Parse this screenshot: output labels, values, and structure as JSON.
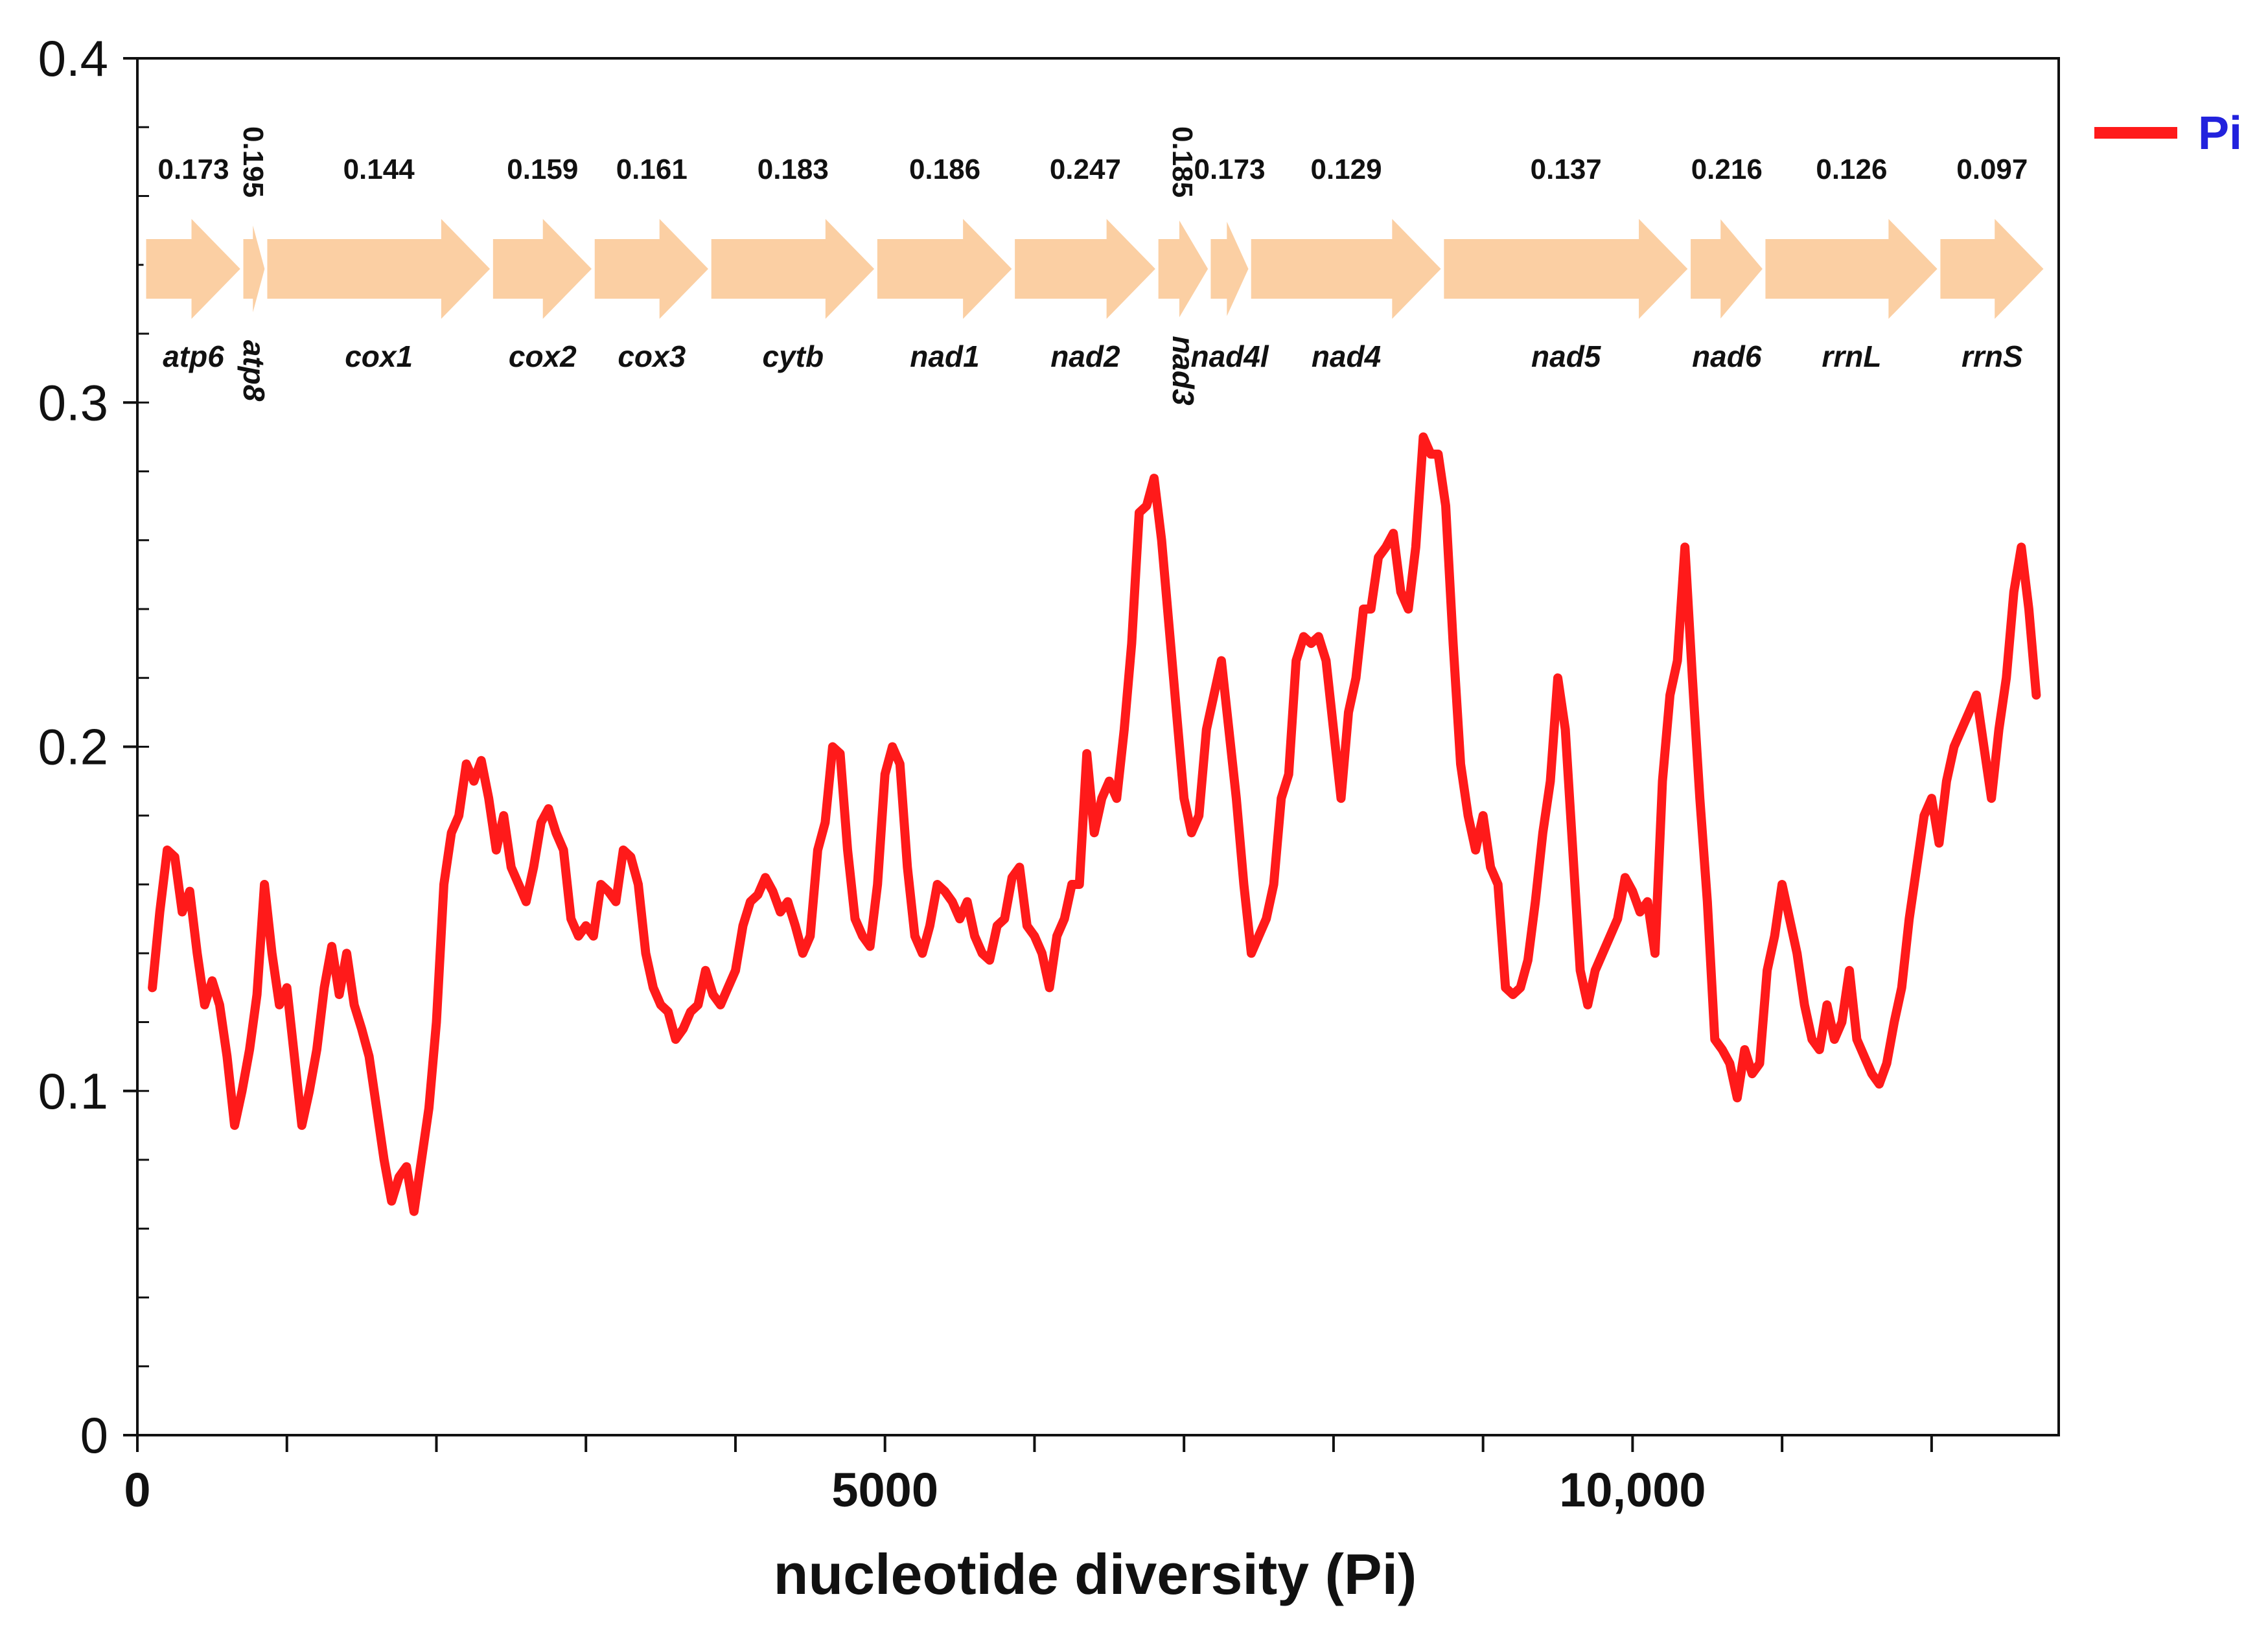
{
  "colors": {
    "series": "#ff1a1a",
    "gene_arrow": "#fbcfa3",
    "legend_text": "#2222dd",
    "axis": "#111111"
  },
  "chart_data": {
    "type": "line",
    "title": "",
    "xlabel": "nucleotide diversity (Pi)",
    "ylabel": "",
    "xlim": [
      0,
      12850
    ],
    "ylim": [
      0,
      0.4
    ],
    "y_ticks": [
      {
        "value": 0,
        "label": "0"
      },
      {
        "value": 0.1,
        "label": "0.1"
      },
      {
        "value": 0.2,
        "label": "0.2"
      },
      {
        "value": 0.3,
        "label": "0.3"
      },
      {
        "value": 0.4,
        "label": "0.4"
      }
    ],
    "x_ticks": [
      {
        "value": 0,
        "label": "0"
      },
      {
        "value": 5000,
        "label": "5000"
      },
      {
        "value": 10000,
        "label": "10,000"
      }
    ],
    "x_minor_step": 1000,
    "y_minor_step": 0.02,
    "legend": {
      "position": "top-right",
      "entries": [
        "Pi"
      ]
    },
    "series": [
      {
        "name": "Pi",
        "x": [
          100,
          150,
          200,
          250,
          300,
          350,
          400,
          450,
          500,
          550,
          600,
          650,
          700,
          750,
          800,
          850,
          900,
          950,
          1000,
          1050,
          1100,
          1150,
          1200,
          1250,
          1300,
          1350,
          1400,
          1450,
          1500,
          1550,
          1600,
          1650,
          1700,
          1750,
          1800,
          1850,
          1900,
          1950,
          2000,
          2050,
          2100,
          2150,
          2200,
          2250,
          2300,
          2350,
          2400,
          2450,
          2500,
          2550,
          2600,
          2650,
          2700,
          2750,
          2800,
          2850,
          2900,
          2950,
          3000,
          3050,
          3100,
          3150,
          3200,
          3250,
          3300,
          3350,
          3400,
          3450,
          3500,
          3550,
          3600,
          3650,
          3700,
          3750,
          3800,
          3850,
          3900,
          3950,
          4000,
          4050,
          4100,
          4150,
          4200,
          4250,
          4300,
          4350,
          4400,
          4450,
          4500,
          4550,
          4600,
          4650,
          4700,
          4750,
          4800,
          4850,
          4900,
          4950,
          5000,
          5050,
          5100,
          5150,
          5200,
          5250,
          5300,
          5350,
          5400,
          5450,
          5500,
          5550,
          5600,
          5650,
          5700,
          5750,
          5800,
          5850,
          5900,
          5950,
          6000,
          6050,
          6100,
          6150,
          6200,
          6250,
          6300,
          6350,
          6400,
          6450,
          6500,
          6550,
          6600,
          6650,
          6700,
          6750,
          6800,
          6850,
          6900,
          6950,
          7000,
          7050,
          7100,
          7150,
          7200,
          7250,
          7300,
          7350,
          7400,
          7450,
          7500,
          7550,
          7600,
          7650,
          7700,
          7750,
          7800,
          7850,
          7900,
          7950,
          8000,
          8050,
          8100,
          8150,
          8200,
          8250,
          8300,
          8350,
          8400,
          8450,
          8500,
          8550,
          8600,
          8650,
          8700,
          8750,
          8800,
          8850,
          8900,
          8950,
          9000,
          9050,
          9100,
          9150,
          9200,
          9250,
          9300,
          9350,
          9400,
          9450,
          9500,
          9550,
          9600,
          9650,
          9700,
          9750,
          9800,
          9850,
          9900,
          9950,
          10000,
          10050,
          10100,
          10150,
          10200,
          10250,
          10300,
          10350,
          10400,
          10450,
          10500,
          10550,
          10600,
          10650,
          10700,
          10750,
          10800,
          10850,
          10900,
          10950,
          11000,
          11050,
          11100,
          11150,
          11200,
          11250,
          11300,
          11350,
          11400,
          11450,
          11500,
          11550,
          11600,
          11650,
          11700,
          11750,
          11800,
          11850,
          11900,
          11950,
          12000,
          12050,
          12100,
          12150,
          12200,
          12250,
          12300,
          12350,
          12400,
          12450,
          12500,
          12550,
          12600,
          12650,
          12700
        ],
        "values": [
          0.13,
          0.152,
          0.17,
          0.168,
          0.152,
          0.158,
          0.14,
          0.125,
          0.132,
          0.125,
          0.11,
          0.09,
          0.1,
          0.112,
          0.128,
          0.16,
          0.14,
          0.125,
          0.13,
          0.11,
          0.09,
          0.1,
          0.112,
          0.13,
          0.142,
          0.128,
          0.14,
          0.125,
          0.118,
          0.11,
          0.095,
          0.08,
          0.068,
          0.075,
          0.078,
          0.065,
          0.08,
          0.095,
          0.12,
          0.16,
          0.175,
          0.18,
          0.195,
          0.19,
          0.196,
          0.185,
          0.17,
          0.18,
          0.165,
          0.16,
          0.155,
          0.165,
          0.178,
          0.182,
          0.175,
          0.17,
          0.15,
          0.145,
          0.148,
          0.145,
          0.16,
          0.158,
          0.155,
          0.17,
          0.168,
          0.16,
          0.14,
          0.13,
          0.125,
          0.123,
          0.115,
          0.118,
          0.123,
          0.125,
          0.135,
          0.128,
          0.125,
          0.13,
          0.135,
          0.148,
          0.155,
          0.157,
          0.162,
          0.158,
          0.152,
          0.155,
          0.148,
          0.14,
          0.145,
          0.17,
          0.178,
          0.2,
          0.198,
          0.17,
          0.15,
          0.145,
          0.142,
          0.16,
          0.192,
          0.2,
          0.195,
          0.165,
          0.145,
          0.14,
          0.148,
          0.16,
          0.158,
          0.155,
          0.15,
          0.155,
          0.145,
          0.14,
          0.138,
          0.148,
          0.15,
          0.162,
          0.165,
          0.148,
          0.145,
          0.14,
          0.13,
          0.145,
          0.15,
          0.16,
          0.16,
          0.198,
          0.175,
          0.185,
          0.19,
          0.185,
          0.205,
          0.23,
          0.268,
          0.27,
          0.278,
          0.26,
          0.235,
          0.21,
          0.185,
          0.175,
          0.18,
          0.205,
          0.215,
          0.225,
          0.205,
          0.185,
          0.16,
          0.14,
          0.145,
          0.15,
          0.16,
          0.185,
          0.192,
          0.225,
          0.232,
          0.23,
          0.232,
          0.225,
          0.205,
          0.185,
          0.21,
          0.22,
          0.24,
          0.24,
          0.255,
          0.258,
          0.262,
          0.245,
          0.24,
          0.258,
          0.29,
          0.285,
          0.285,
          0.27,
          0.23,
          0.195,
          0.18,
          0.17,
          0.18,
          0.165,
          0.16,
          0.13,
          0.128,
          0.13,
          0.138,
          0.155,
          0.175,
          0.19,
          0.22,
          0.205,
          0.17,
          0.135,
          0.125,
          0.135,
          0.14,
          0.145,
          0.15,
          0.162,
          0.158,
          0.152,
          0.155,
          0.14,
          0.19,
          0.215,
          0.225,
          0.258,
          0.22,
          0.185,
          0.155,
          0.115,
          0.112,
          0.108,
          0.098,
          0.112,
          0.105,
          0.108,
          0.135,
          0.145,
          0.16,
          0.15,
          0.14,
          0.125,
          0.115,
          0.112,
          0.125,
          0.115,
          0.12,
          0.135,
          0.115,
          0.11,
          0.105,
          0.102,
          0.108,
          0.12,
          0.13,
          0.15,
          0.165,
          0.18,
          0.185,
          0.172,
          0.19,
          0.2,
          0.205,
          0.21,
          0.215,
          0.2,
          0.185,
          0.205,
          0.22,
          0.245,
          0.258,
          0.24,
          0.215
        ]
      }
    ]
  },
  "genes": [
    {
      "name": "atp6",
      "value": "0.173",
      "start": 50,
      "end": 700
    },
    {
      "name": "atp8",
      "value": "0.195",
      "start": 700,
      "end": 860,
      "rotated": true
    },
    {
      "name": "cox1",
      "value": "0.144",
      "start": 860,
      "end": 2370
    },
    {
      "name": "cox2",
      "value": "0.159",
      "start": 2370,
      "end": 3050
    },
    {
      "name": "cox3",
      "value": "0.161",
      "start": 3050,
      "end": 3830
    },
    {
      "name": "cytb",
      "value": "0.183",
      "start": 3830,
      "end": 4940
    },
    {
      "name": "nad1",
      "value": "0.186",
      "start": 4940,
      "end": 5860
    },
    {
      "name": "nad2",
      "value": "0.247",
      "start": 5860,
      "end": 6820
    },
    {
      "name": "nad3",
      "value": "0.185",
      "start": 6820,
      "end": 7170,
      "rotated": true
    },
    {
      "name": "nad4l",
      "value": "0.173",
      "start": 7170,
      "end": 7440
    },
    {
      "name": "nad4",
      "value": "0.129",
      "start": 7440,
      "end": 8730
    },
    {
      "name": "nad5",
      "value": "0.137",
      "start": 8730,
      "end": 10380
    },
    {
      "name": "nad6",
      "value": "0.216",
      "start": 10380,
      "end": 10880
    },
    {
      "name": "rrnL",
      "value": "0.126",
      "start": 10880,
      "end": 12050
    },
    {
      "name": "rrnS",
      "value": "0.097",
      "start": 12050,
      "end": 12760
    }
  ]
}
